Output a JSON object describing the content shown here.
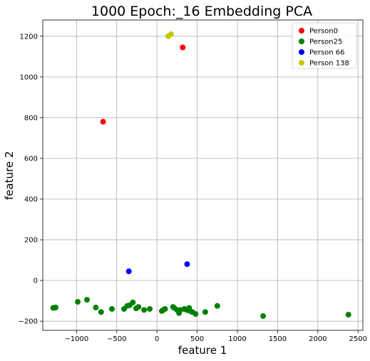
{
  "chart_data": {
    "type": "scatter",
    "title": "1000 Epoch:_16 Embedding PCA",
    "xlabel": "feature 1",
    "ylabel": "feature 2",
    "xlim": [
      -1420,
      2560
    ],
    "ylim": [
      -245,
      1280
    ],
    "xticks": [
      -1000,
      -500,
      0,
      500,
      1000,
      1500,
      2000,
      2500
    ],
    "yticks": [
      -200,
      0,
      200,
      400,
      600,
      800,
      1000,
      1200
    ],
    "xtick_labels": [
      "−1000",
      "−500",
      "0",
      "500",
      "1000",
      "1500",
      "2000",
      "2500"
    ],
    "ytick_labels": [
      "−200",
      "0",
      "200",
      "400",
      "600",
      "800",
      "1000",
      "1200"
    ],
    "grid": true,
    "legend_position": "top-right",
    "series": [
      {
        "name": "Person0",
        "color": "#ff0000",
        "points": [
          [
            320,
            1145
          ],
          [
            -670,
            780
          ]
        ]
      },
      {
        "name": "Person25",
        "color": "#008000",
        "points": [
          [
            -1290,
            -135
          ],
          [
            -1260,
            -133
          ],
          [
            -985,
            -105
          ],
          [
            -870,
            -95
          ],
          [
            -760,
            -133
          ],
          [
            -695,
            -155
          ],
          [
            -560,
            -140
          ],
          [
            -410,
            -140
          ],
          [
            -370,
            -125
          ],
          [
            -340,
            -122
          ],
          [
            -300,
            -108
          ],
          [
            -260,
            -137
          ],
          [
            -230,
            -130
          ],
          [
            -160,
            -145
          ],
          [
            -90,
            -140
          ],
          [
            60,
            -150
          ],
          [
            80,
            -145
          ],
          [
            100,
            -140
          ],
          [
            200,
            -130
          ],
          [
            215,
            -135
          ],
          [
            250,
            -145
          ],
          [
            275,
            -160
          ],
          [
            290,
            -145
          ],
          [
            340,
            -140
          ],
          [
            370,
            -145
          ],
          [
            400,
            -135
          ],
          [
            410,
            -150
          ],
          [
            440,
            -155
          ],
          [
            480,
            -165
          ],
          [
            600,
            -155
          ],
          [
            750,
            -125
          ],
          [
            1320,
            -175
          ],
          [
            2380,
            -168
          ]
        ]
      },
      {
        "name": "Person 66",
        "color": "#0000ff",
        "points": [
          [
            -350,
            45
          ],
          [
            375,
            80
          ]
        ]
      },
      {
        "name": "Person 138",
        "color": "#c8c800",
        "points": [
          [
            140,
            1200
          ],
          [
            175,
            1210
          ]
        ]
      }
    ]
  }
}
